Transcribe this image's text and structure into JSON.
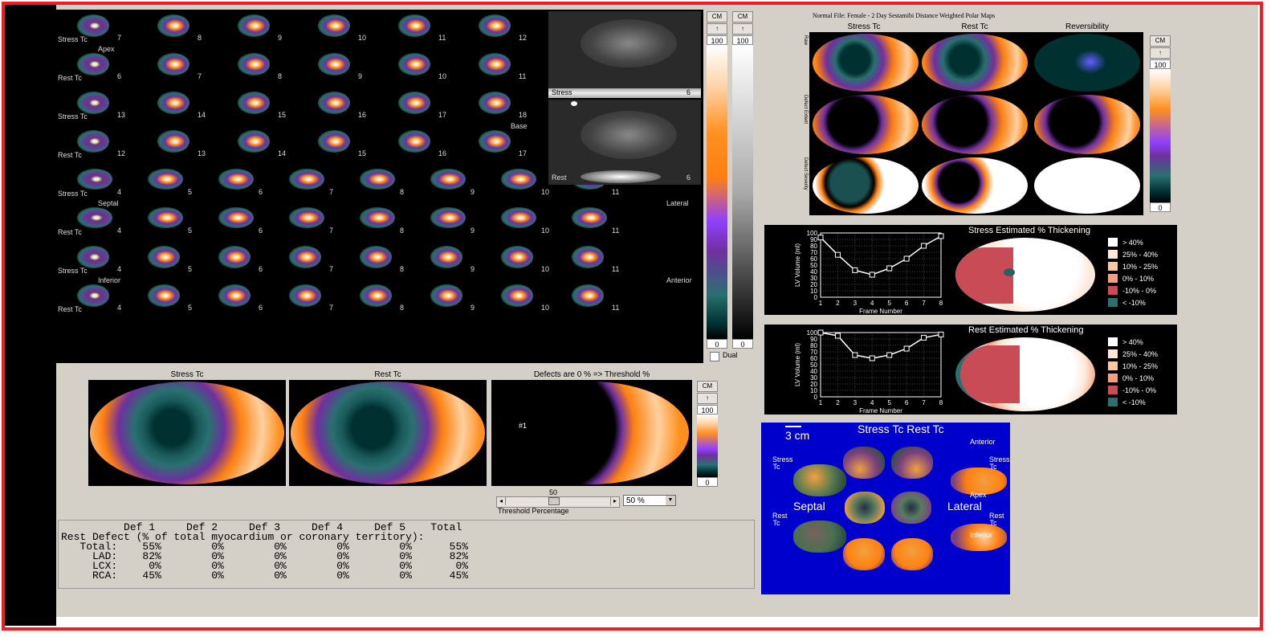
{
  "slice_rows": [
    {
      "label": "Stress Tc",
      "nums": [
        "7",
        "8",
        "9",
        "10",
        "11",
        "12"
      ],
      "extra": "Apex"
    },
    {
      "label": "Rest Tc",
      "nums": [
        "6",
        "7",
        "8",
        "9",
        "10",
        "11"
      ],
      "extra": ""
    },
    {
      "label": "Stress Tc",
      "nums": [
        "13",
        "14",
        "15",
        "16",
        "17",
        "18"
      ],
      "extra": "Base"
    },
    {
      "label": "Rest Tc",
      "nums": [
        "12",
        "13",
        "14",
        "15",
        "16",
        "17"
      ],
      "extra": ""
    },
    {
      "label": "Stress Tc",
      "nums": [
        "4",
        "5",
        "6",
        "7",
        "8",
        "9",
        "10",
        "11"
      ],
      "extra": "Septal|Lateral"
    },
    {
      "label": "Rest Tc",
      "nums": [
        "4",
        "5",
        "6",
        "7",
        "8",
        "9",
        "10",
        "11"
      ],
      "extra": ""
    },
    {
      "label": "Stress Tc",
      "nums": [
        "4",
        "5",
        "6",
        "7",
        "8",
        "9",
        "10",
        "11"
      ],
      "extra": "Inferior|Anterior"
    },
    {
      "label": "Rest Tc",
      "nums": [
        "4",
        "5",
        "6",
        "7",
        "8",
        "9",
        "10",
        "11"
      ],
      "extra": ""
    }
  ],
  "scan_labels": {
    "stress": "Stress",
    "stress_num": "6",
    "rest": "Rest",
    "rest_num": "6"
  },
  "colorbar1": {
    "cm": "CM",
    "max": "100",
    "min": "0"
  },
  "colorbar2": {
    "cm": "CM",
    "max": "100",
    "min": "0"
  },
  "dual_label": "Dual",
  "polar_header": "Normal File:  Female - 2 Day Sestamibi   Distance Weighted Polar Maps",
  "polar_cols": [
    "Stress Tc",
    "Rest Tc",
    "Reversibility"
  ],
  "polar_rows": [
    "Raw",
    "Defect Extent",
    "Defect Severity"
  ],
  "colorbar3": {
    "cm": "CM",
    "max": "100",
    "min": "0"
  },
  "stress_thickening": {
    "title": "Stress Estimated % Thickening",
    "ylabel": "LV Volume (ml)",
    "xlabel": "Frame Number",
    "legend": [
      "> 40%",
      "25% - 40%",
      "10% - 25%",
      "0% - 10%",
      "-10% - 0%",
      "< -10%"
    ]
  },
  "rest_thickening": {
    "title": "Rest Estimated % Thickening",
    "ylabel": "LV Volume (ml)",
    "xlabel": "Frame Number",
    "legend": [
      "> 40%",
      "25% - 40%",
      "10% - 25%",
      "0% - 10%",
      "-10% - 0%",
      "< -10%"
    ]
  },
  "chart_data": [
    {
      "type": "line",
      "title": "",
      "xlabel": "Frame Number",
      "ylabel": "LV Volume (ml)",
      "x": [
        1,
        2,
        3,
        4,
        5,
        6,
        7,
        8
      ],
      "series": [
        {
          "values": [
            93,
            66,
            42,
            35,
            45,
            60,
            80,
            95
          ]
        }
      ],
      "ylim": [
        0,
        100
      ],
      "xlim": [
        1,
        8
      ],
      "grid": true
    },
    {
      "type": "line",
      "title": "",
      "xlabel": "Frame Number",
      "ylabel": "LV Volume (ml)",
      "x": [
        1,
        2,
        3,
        4,
        5,
        6,
        7,
        8
      ],
      "series": [
        {
          "values": [
            100,
            95,
            65,
            60,
            65,
            75,
            92,
            97
          ]
        }
      ],
      "ylim": [
        0,
        100
      ],
      "xlim": [
        1,
        8
      ],
      "grid": true
    }
  ],
  "bottom_polar": {
    "titles": [
      "Stress Tc",
      "Rest Tc",
      "Defects are 0 % => Threshold %"
    ],
    "def_marker": "#1"
  },
  "colorbar4": {
    "cm": "CM",
    "max": "100",
    "min": "0"
  },
  "threshold": {
    "value_label": "50",
    "caption": "Threshold Percentage",
    "select": "50 %"
  },
  "defect_table": {
    "header": "          Def 1     Def 2     Def 3     Def 4     Def 5    Total",
    "title": "Rest Defect (% of total myocardium or coronary territory):",
    "rows": [
      "   Total:    55%        0%        0%        0%        0%      55%",
      "     LAD:    82%        0%        0%        0%        0%      82%",
      "     LCX:     0%        0%        0%        0%        0%       0%",
      "     RCA:    45%        0%        0%        0%        0%      45%"
    ]
  },
  "render3d": {
    "title": "Stress Tc Rest Tc",
    "scale": "3 cm",
    "septal": "Septal",
    "lateral": "Lateral",
    "v_stress": "Stress Tc",
    "v_rest": "Rest Tc",
    "v_anterior": "Anterior",
    "v_apex": "Apex",
    "v_inferior": "Inferior"
  }
}
